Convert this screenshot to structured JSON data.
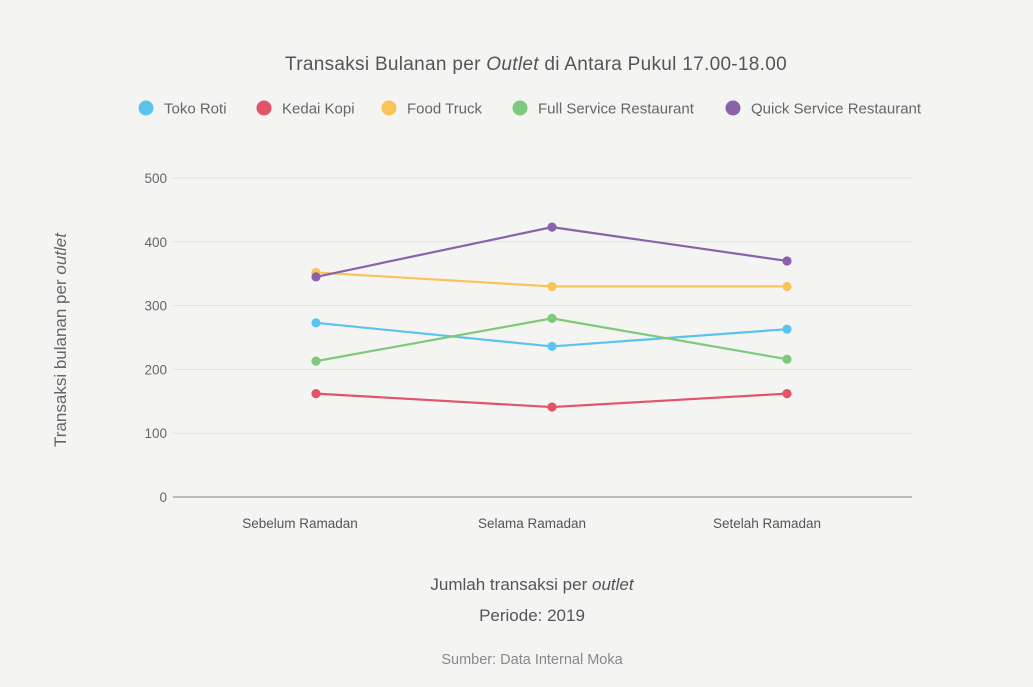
{
  "chart_data": {
    "type": "line",
    "title": {
      "prefix": "Transaksi Bulanan per ",
      "italic": "Outlet",
      "suffix": " di Antara Pukul 17.00-18.00"
    },
    "categories": [
      "Sebelum Ramadan",
      "Selama Ramadan",
      "Setelah Ramadan"
    ],
    "series": [
      {
        "name": "Toko Roti",
        "color": "#5bc4ec",
        "values": [
          273,
          236,
          263
        ]
      },
      {
        "name": "Kedai Kopi",
        "color": "#e15469",
        "values": [
          162,
          141,
          162
        ]
      },
      {
        "name": "Food Truck",
        "color": "#f8c45a",
        "values": [
          352,
          330,
          330
        ]
      },
      {
        "name": "Full Service Restaurant",
        "color": "#7fc97c",
        "values": [
          213,
          280,
          216
        ]
      },
      {
        "name": "Quick Service Restaurant",
        "color": "#8a62ac",
        "values": [
          345,
          423,
          370
        ]
      }
    ],
    "ylim": [
      0,
      500
    ],
    "yticks": [
      0,
      100,
      200,
      300,
      400,
      500
    ],
    "ylabel": {
      "prefix": "Transaksi bulanan per ",
      "italic": "outlet"
    },
    "xlabel": {
      "prefix": "Jumlah transaksi per ",
      "italic": "outlet"
    },
    "grid": true,
    "legend_position": "top"
  },
  "period": "Periode: 2019",
  "source": "Sumber: Data Internal Moka"
}
